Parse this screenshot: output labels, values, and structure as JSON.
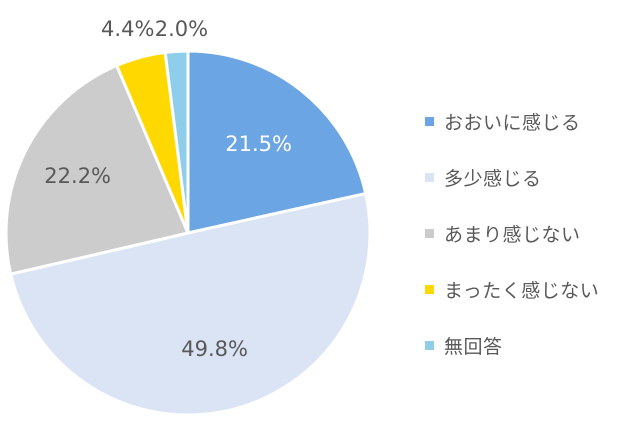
{
  "chart_data": {
    "type": "pie",
    "categories": [
      "おおいに感じる",
      "多少感じる",
      "あまり感じない",
      "まったく感じない",
      "無回答"
    ],
    "values": [
      21.5,
      49.8,
      22.2,
      4.4,
      2.0
    ],
    "labels": [
      "21.5%",
      "49.8%",
      "22.2%",
      "4.4%",
      "2.0%"
    ],
    "colors": [
      "#6CA5E3",
      "#DAE4F4",
      "#CCCCCC",
      "#FFD800",
      "#8ECEEA"
    ],
    "start_angle_deg": 0,
    "direction": "clockwise",
    "legend_position": "right"
  }
}
